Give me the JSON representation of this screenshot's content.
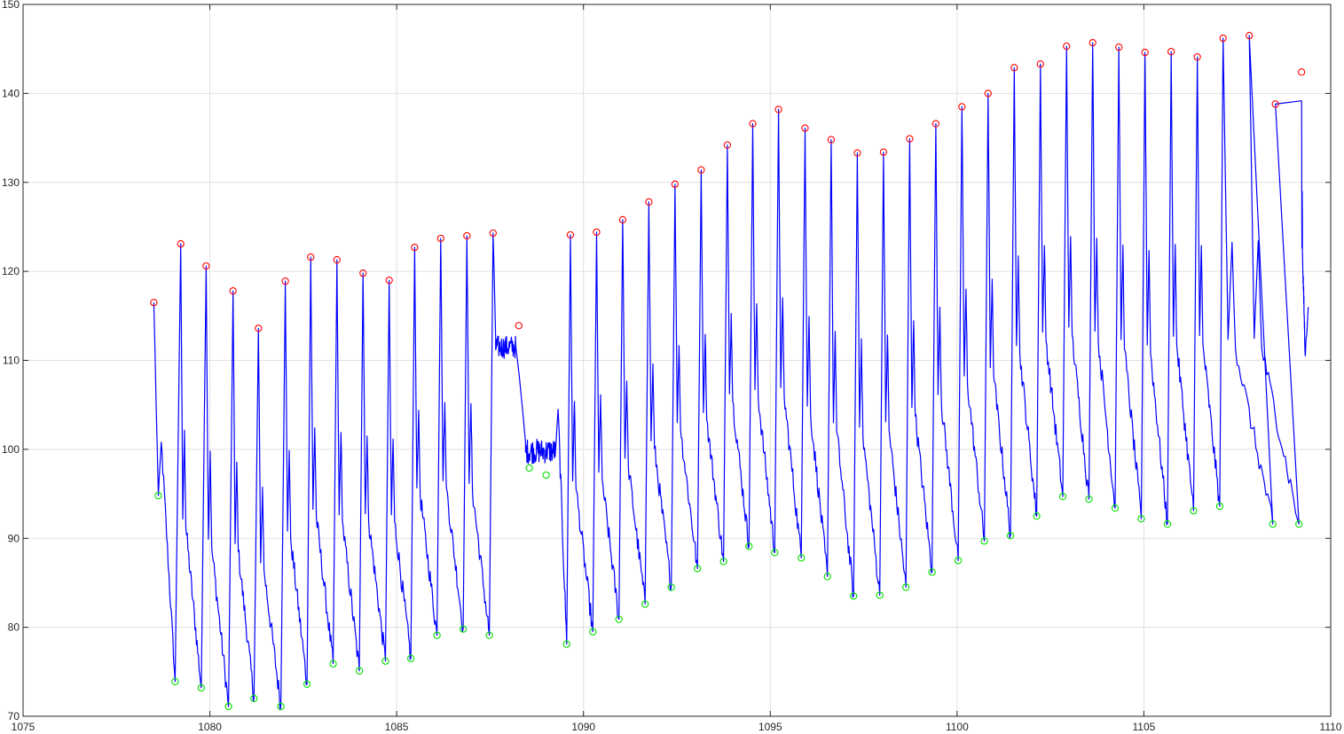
{
  "chart_data": {
    "type": "line",
    "title": "",
    "xlabel": "",
    "ylabel": "",
    "xlim": [
      1075,
      1110
    ],
    "ylim": [
      70,
      150
    ],
    "grid": true,
    "x_ticks": [
      1075,
      1080,
      1085,
      1090,
      1095,
      1100,
      1105,
      1110
    ],
    "y_ticks": [
      70,
      80,
      90,
      100,
      110,
      120,
      130,
      140,
      150
    ],
    "x_tick_labels": [
      "1075",
      "1080",
      "1085",
      "1090",
      "1095",
      "1100",
      "1105",
      "1110"
    ],
    "y_tick_labels": [
      "70",
      "80",
      "90",
      "100",
      "110",
      "120",
      "130",
      "140",
      "150"
    ],
    "colors": {
      "signal": "#0000ff",
      "peaks": "#ff0000",
      "troughs": "#00e000",
      "grid": "#e0e0e0",
      "axes": "#262626"
    },
    "series": [
      {
        "role": "peaks",
        "marker": "circle",
        "points": [
          [
            1078.5,
            116.5
          ],
          [
            1079.22,
            123.1
          ],
          [
            1079.9,
            120.6
          ],
          [
            1080.62,
            117.8
          ],
          [
            1081.3,
            113.6
          ],
          [
            1082.02,
            118.9
          ],
          [
            1082.7,
            121.6
          ],
          [
            1083.4,
            121.3
          ],
          [
            1084.1,
            119.8
          ],
          [
            1084.8,
            119.0
          ],
          [
            1085.48,
            122.7
          ],
          [
            1086.18,
            123.7
          ],
          [
            1086.88,
            124.0
          ],
          [
            1087.58,
            124.3
          ],
          [
            1088.27,
            113.9
          ],
          [
            1089.65,
            124.1
          ],
          [
            1090.35,
            124.4
          ],
          [
            1091.05,
            125.8
          ],
          [
            1091.75,
            127.8
          ],
          [
            1092.45,
            129.8
          ],
          [
            1093.15,
            131.4
          ],
          [
            1093.85,
            134.2
          ],
          [
            1094.53,
            136.6
          ],
          [
            1095.22,
            138.2
          ],
          [
            1095.93,
            136.1
          ],
          [
            1096.63,
            134.8
          ],
          [
            1097.33,
            133.3
          ],
          [
            1098.03,
            133.4
          ],
          [
            1098.73,
            134.9
          ],
          [
            1099.43,
            136.6
          ],
          [
            1100.13,
            138.5
          ],
          [
            1100.83,
            140.0
          ],
          [
            1101.53,
            142.9
          ],
          [
            1102.23,
            143.3
          ],
          [
            1102.93,
            145.3
          ],
          [
            1103.63,
            145.7
          ],
          [
            1104.33,
            145.2
          ],
          [
            1105.03,
            144.6
          ],
          [
            1105.73,
            144.7
          ],
          [
            1106.43,
            144.1
          ],
          [
            1107.12,
            146.2
          ],
          [
            1107.82,
            146.5
          ],
          [
            1108.52,
            138.8
          ],
          [
            1109.22,
            142.4
          ]
        ]
      },
      {
        "role": "troughs",
        "marker": "circle",
        "points": [
          [
            1078.62,
            94.8
          ],
          [
            1079.07,
            73.9
          ],
          [
            1079.77,
            73.2
          ],
          [
            1080.5,
            71.1
          ],
          [
            1081.18,
            72.0
          ],
          [
            1081.9,
            71.1
          ],
          [
            1082.6,
            73.6
          ],
          [
            1083.3,
            75.9
          ],
          [
            1084.0,
            75.1
          ],
          [
            1084.7,
            76.2
          ],
          [
            1085.38,
            76.5
          ],
          [
            1086.08,
            79.1
          ],
          [
            1086.78,
            79.8
          ],
          [
            1087.48,
            79.1
          ],
          [
            1088.55,
            97.9
          ],
          [
            1089.0,
            97.1
          ],
          [
            1089.55,
            78.1
          ],
          [
            1090.25,
            79.5
          ],
          [
            1090.95,
            80.9
          ],
          [
            1091.65,
            82.6
          ],
          [
            1092.35,
            84.5
          ],
          [
            1093.05,
            86.6
          ],
          [
            1093.75,
            87.4
          ],
          [
            1094.43,
            89.1
          ],
          [
            1095.12,
            88.4
          ],
          [
            1095.83,
            87.8
          ],
          [
            1096.53,
            85.7
          ],
          [
            1097.23,
            83.5
          ],
          [
            1097.93,
            83.6
          ],
          [
            1098.63,
            84.5
          ],
          [
            1099.33,
            86.2
          ],
          [
            1100.03,
            87.5
          ],
          [
            1100.73,
            89.7
          ],
          [
            1101.43,
            90.3
          ],
          [
            1102.13,
            92.5
          ],
          [
            1102.83,
            94.7
          ],
          [
            1103.53,
            94.4
          ],
          [
            1104.23,
            93.4
          ],
          [
            1104.93,
            92.2
          ],
          [
            1105.63,
            91.6
          ],
          [
            1106.33,
            93.1
          ],
          [
            1107.03,
            93.6
          ],
          [
            1108.45,
            91.6
          ],
          [
            1109.15,
            91.6
          ]
        ]
      }
    ],
    "signal": {
      "role": "signal",
      "plateaus": [
        {
          "x_start": 1087.65,
          "x_end": 1088.2,
          "center": 111.5,
          "amplitude": 1.3
        },
        {
          "x_start": 1088.45,
          "x_end": 1089.25,
          "center": 99.8,
          "amplitude": 1.4
        }
      ],
      "end_point": [
        1109.4,
        113.0
      ]
    }
  }
}
